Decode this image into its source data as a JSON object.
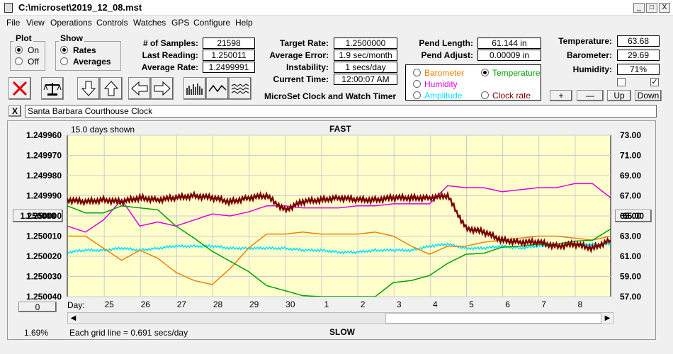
{
  "window": {
    "title": "C:\\microset\\2019_12_08.mst",
    "minimize": "_",
    "maximize": "□",
    "close": "X"
  },
  "menu": [
    "File",
    "View",
    "Operations",
    "Controls",
    "Watches",
    "GPS",
    "Configure",
    "Help"
  ],
  "plot_group": {
    "label": "Plot",
    "options": [
      "On",
      "Off"
    ],
    "selected": "On"
  },
  "show_group": {
    "label": "Show",
    "options": [
      "Rates",
      "Averages"
    ],
    "selected": "Rates"
  },
  "stats": {
    "samples_label": "# of Samples:",
    "samples": "21598",
    "last_label": "Last Reading:",
    "last": "1.250011",
    "avg_label": "Average Rate:",
    "avg": "1.2499991"
  },
  "target": {
    "rate_label": "Target Rate:",
    "rate": "1.2500000",
    "err_label": "Average Error:",
    "err": "1.9 sec/month",
    "inst_label": "Instability:",
    "inst": "1 secs/day",
    "time_label": "Current Time:",
    "time": "12:00:07 AM",
    "app_caption": "MicroSet Clock and Watch Timer"
  },
  "pend": {
    "len_label": "Pend Length:",
    "len": "61.144 in",
    "adj_label": "Pend Adjust:",
    "adj": "0.00009 in"
  },
  "channels": {
    "barometer": "Barometer",
    "temperature": "Temperature",
    "humidity": "Humidity",
    "amplitude": "Amplitude",
    "clock_rate": "Clock rate",
    "selected": "Temperature"
  },
  "env": {
    "temp_label": "Temperature:",
    "temp": "63.68",
    "baro_label": "Barometer:",
    "baro": "29.69",
    "hum_label": "Humidity:",
    "hum": "71%"
  },
  "scale_buttons": {
    "plus": "+",
    "minus": "—",
    "up": "Up",
    "down": "Down"
  },
  "name_field": {
    "value": "Santa Barbara Courthouse Clock",
    "clear": "X"
  },
  "chart_header": {
    "days_shown": "15.0 days shown",
    "fast": "FAST",
    "slow": "SLOW",
    "grid_note": "Each grid line = 0.691 secs/day",
    "left_pct": "1.69%",
    "day_label": "Day:"
  },
  "left_center_button": "1.250000",
  "right_center_button": "65.00",
  "bottom_left_button": "0",
  "colors": {
    "chart_bg": "#ffffcc",
    "rate": "#7a0000",
    "temperature": "#00a000",
    "humidity": "#e000e0",
    "barometer": "#f08000",
    "amplitude": "#00e0ff"
  },
  "chart_data": {
    "type": "line",
    "x_tick_labels": [
      "25",
      "26",
      "27",
      "28",
      "29",
      "30",
      "1",
      "2",
      "3",
      "4",
      "5",
      "6",
      "7",
      "8"
    ],
    "left_axis": {
      "ticks": [
        "1.249960",
        "1.249970",
        "1.249980",
        "1.249990",
        "1.250000",
        "1.250010",
        "1.250020",
        "1.250030",
        "1.250040"
      ],
      "range": [
        1.24996,
        1.25004
      ]
    },
    "right_axis": {
      "ticks": [
        "73.00",
        "71.00",
        "69.00",
        "67.00",
        "65.00",
        "63.00",
        "61.00",
        "59.00",
        "57.00"
      ],
      "range": [
        57,
        73
      ]
    },
    "grid": true,
    "series": [
      {
        "name": "Clock rate",
        "axis": "left",
        "x": [
          0,
          0.5,
          1,
          1.5,
          2,
          2.5,
          3,
          3.5,
          4,
          4.5,
          5,
          5.5,
          6,
          6.5,
          7,
          7.5,
          8,
          8.5,
          9,
          9.5,
          10,
          10.5,
          11,
          11.5,
          12,
          12.5,
          13,
          13.5,
          14,
          14.5,
          15
        ],
        "y": [
          1.249992,
          1.249993,
          1.249992,
          1.249993,
          1.249991,
          1.249992,
          1.249991,
          1.24999,
          1.249991,
          1.249993,
          1.249991,
          1.24999,
          1.249997,
          1.249993,
          1.249992,
          1.249991,
          1.249992,
          1.249992,
          1.249991,
          1.249991,
          1.249991,
          1.24999,
          1.250006,
          1.250008,
          1.250012,
          1.250013,
          1.250013,
          1.250015,
          1.250014,
          1.250016,
          1.250012
        ]
      },
      {
        "name": "Temperature",
        "axis": "right",
        "x": [
          0,
          0.5,
          1,
          1.5,
          2,
          2.5,
          3,
          3.5,
          4,
          4.5,
          5,
          5.5,
          6,
          6.5,
          7,
          7.5,
          8,
          8.5,
          9,
          9.5,
          10,
          10.5,
          11,
          11.5,
          12,
          12.5,
          13,
          13.5,
          14,
          14.5,
          15
        ],
        "y": [
          66.0,
          65.3,
          65.3,
          66.0,
          65.8,
          65.6,
          64.0,
          62.8,
          61.5,
          60.5,
          59.5,
          58.1,
          57.6,
          57.1,
          57.0,
          57.0,
          57.0,
          57.0,
          58.4,
          58.6,
          59.1,
          60.3,
          61.2,
          61.3,
          61.9,
          62.0,
          62.2,
          62.2,
          62.5,
          62.6,
          63.7
        ]
      },
      {
        "name": "Humidity",
        "axis": "left",
        "x": [
          0,
          0.5,
          1,
          1.5,
          2,
          2.5,
          3,
          3.5,
          4,
          4.5,
          5,
          5.5,
          6,
          6.5,
          7,
          7.5,
          8,
          8.5,
          9,
          9.5,
          10,
          10.5,
          11,
          11.5,
          12,
          12.5,
          13,
          13.5,
          14,
          14.5,
          15
        ],
        "y": [
          1.250005,
          1.250008,
          1.250002,
          1.249992,
          1.250005,
          1.250003,
          1.250005,
          1.250002,
          1.249999,
          1.25,
          1.249998,
          1.249995,
          1.249995,
          1.249996,
          1.249996,
          1.249996,
          1.249995,
          1.249995,
          1.249994,
          1.249994,
          1.249994,
          1.249985,
          1.249986,
          1.249986,
          1.249988,
          1.249987,
          1.249986,
          1.249986,
          1.249984,
          1.249984,
          1.249991
        ]
      },
      {
        "name": "Barometer",
        "axis": "left",
        "x": [
          0,
          0.5,
          1,
          1.5,
          2,
          2.5,
          3,
          3.5,
          4,
          4.5,
          5,
          5.5,
          6,
          6.5,
          7,
          7.5,
          8,
          8.5,
          9,
          9.5,
          10,
          10.5,
          11,
          11.5,
          12,
          12.5,
          13,
          13.5,
          14,
          14.5,
          15
        ],
        "y": [
          1.25001,
          1.25001,
          1.250016,
          1.250022,
          1.250017,
          1.250021,
          1.250028,
          1.250032,
          1.250034,
          1.250026,
          1.250016,
          1.250009,
          1.250009,
          1.250008,
          1.250009,
          1.250009,
          1.250009,
          1.250008,
          1.25001,
          1.250015,
          1.250019,
          1.250015,
          1.250015,
          1.250013,
          1.250012,
          1.250011,
          1.25001,
          1.25001,
          1.250011,
          1.250012,
          1.25001
        ]
      },
      {
        "name": "Amplitude",
        "axis": "left",
        "x": [
          0,
          0.5,
          1,
          1.5,
          2,
          2.5,
          3,
          3.5,
          4,
          4.5,
          5,
          5.5,
          6,
          6.5,
          7,
          7.5,
          8,
          8.5,
          9,
          9.5,
          10,
          10.5,
          11,
          11.5,
          12,
          12.5,
          13,
          13.5,
          14,
          14.5,
          15
        ],
        "y": [
          1.250018,
          1.250017,
          1.250017,
          1.250016,
          1.250017,
          1.250016,
          1.250015,
          1.250015,
          1.250015,
          1.250016,
          1.250016,
          1.250016,
          1.250016,
          1.250017,
          1.250017,
          1.250018,
          1.250018,
          1.250017,
          1.250017,
          1.250017,
          1.250015,
          1.250014,
          1.250016,
          1.250016,
          1.250015,
          1.250016,
          1.250015,
          1.250015,
          1.250014,
          1.250014,
          1.250014
        ]
      }
    ]
  }
}
